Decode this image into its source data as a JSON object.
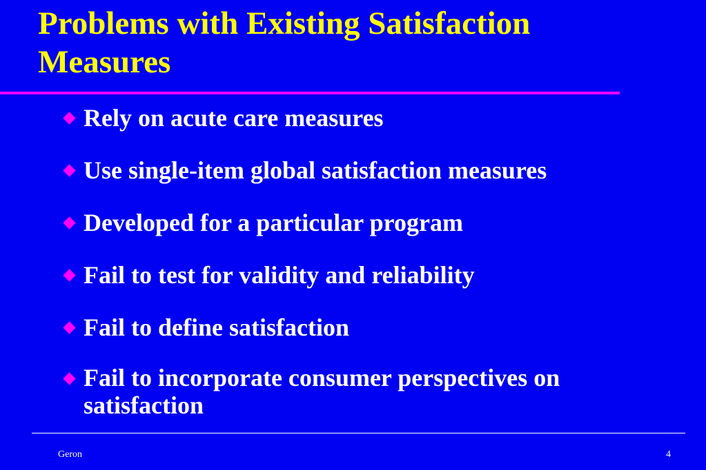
{
  "slide": {
    "title": "Problems with Existing Satisfaction Measures",
    "bullets": [
      "Rely on acute care measures",
      "Use single-item global satisfaction measures",
      "Developed for a particular program",
      "Fail to test for validity and reliability",
      "Fail to define satisfaction",
      "Fail to incorporate consumer perspectives on satisfaction"
    ],
    "footer": {
      "author": "Geron",
      "page_number": "4"
    }
  },
  "colors": {
    "background": "#0000f2",
    "title": "#ffff00",
    "accent": "#ff00ff",
    "text": "#ffffff"
  },
  "icons": {
    "bullet": "diamond-bullet-icon"
  }
}
